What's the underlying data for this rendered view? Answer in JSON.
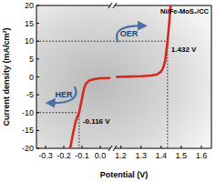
{
  "chart_data": [
    {
      "type": "line",
      "ylabel": "Current density (mA/cm²)",
      "xlim": [
        -0.35,
        0.055
      ],
      "xticks": [
        -0.3,
        -0.2,
        -0.1,
        {
          "value": 0,
          "label": "0.0"
        }
      ],
      "ylim": [
        -20,
        20
      ],
      "yticks": [
        -20,
        -15,
        -10,
        -5,
        0,
        5,
        10,
        15,
        20
      ],
      "series": [
        {
          "color": "#d42a1e",
          "x": [
            -0.165,
            -0.15,
            -0.135,
            -0.116,
            -0.1,
            -0.09,
            -0.08,
            -0.06,
            -0.03,
            0,
            0.05
          ],
          "values": [
            -20,
            -16,
            -12.5,
            -10,
            -6,
            -3.5,
            -2,
            -1,
            -0.6,
            -0.4,
            -0.3
          ]
        }
      ],
      "annotations": [
        {
          "text": "-0.116 V",
          "x": -0.116,
          "y": -10,
          "line_style": "dotted"
        },
        {
          "text": "HER",
          "x": -0.2,
          "y": -5
        }
      ]
    },
    {
      "type": "line",
      "title": "Ni/Fe-MoS₂/CC",
      "xlabel": "Potential (V)",
      "xlim": [
        1.17,
        1.65
      ],
      "xticks": [
        1.2,
        1.3,
        1.4,
        1.5,
        1.6
      ],
      "ylim": [
        -20,
        20
      ],
      "series": [
        {
          "color": "#d42a1e",
          "x": [
            1.18,
            1.25,
            1.3,
            1.35,
            1.38,
            1.4,
            1.41,
            1.42,
            1.432,
            1.44,
            1.447
          ],
          "values": [
            0,
            0.1,
            0.2,
            0.4,
            0.7,
            1.5,
            2.5,
            4.5,
            10,
            15,
            20
          ]
        }
      ],
      "annotations": [
        {
          "text": "1.432 V",
          "x": 1.432,
          "y": 10,
          "line_style": "dotted"
        },
        {
          "text": "OER",
          "x": 1.24,
          "y": 12
        }
      ]
    }
  ]
}
